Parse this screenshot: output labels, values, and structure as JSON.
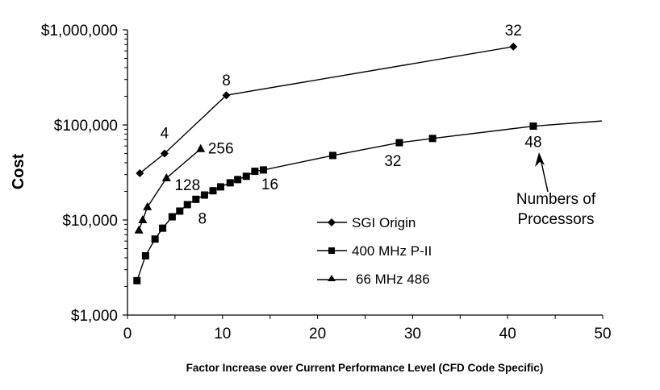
{
  "chart_data": {
    "type": "line",
    "title": "",
    "xlabel": "Factor Increase over Current Performance Level (CFD Code Specific)",
    "ylabel": "Cost",
    "xlim": [
      0,
      50
    ],
    "ylim": [
      1000,
      1000000
    ],
    "yscale": "log",
    "xticks": [
      0,
      10,
      20,
      30,
      40,
      50
    ],
    "xtick_labels": [
      "0",
      "10",
      "20",
      "30",
      "40",
      "50"
    ],
    "yticks": [
      1000,
      10000,
      100000,
      1000000
    ],
    "ytick_labels": [
      "$1,000",
      "$10,000",
      "$100,000",
      "$1,000,000"
    ],
    "grid": false,
    "legend_position": "center",
    "series": [
      {
        "name": "SGI Origin",
        "marker": "diamond",
        "x": [
          1.3,
          3.9,
          10.4,
          40.6
        ],
        "y": [
          31000,
          50000,
          205000,
          665000
        ],
        "point_labels": [
          {
            "index": 1,
            "text": "4"
          },
          {
            "index": 2,
            "text": "8"
          },
          {
            "index": 3,
            "text": "32"
          }
        ]
      },
      {
        "name": "400 MHz P-II",
        "marker": "square",
        "x": [
          1.0,
          1.9,
          2.9,
          3.7,
          4.7,
          5.5,
          6.3,
          7.2,
          8.1,
          9.0,
          9.8,
          10.8,
          11.6,
          12.5,
          13.4,
          14.3,
          21.6,
          28.6,
          32.1,
          42.7
        ],
        "y": [
          2300,
          4200,
          6300,
          8200,
          10800,
          12400,
          14500,
          16500,
          18300,
          20300,
          22300,
          24600,
          26600,
          28800,
          32500,
          33600,
          47700,
          65000,
          72000,
          97000
        ],
        "line_extension": {
          "x": 49.9,
          "y": 110000
        },
        "point_labels": [
          {
            "index": 7,
            "text": "8"
          },
          {
            "index": 15,
            "text": "16"
          },
          {
            "index": 17,
            "text": "32"
          },
          {
            "index": 19,
            "text": "48"
          }
        ]
      },
      {
        "name": "66 MHz 486",
        "marker": "triangle",
        "x": [
          1.2,
          1.6,
          2.1,
          4.1,
          7.7
        ],
        "y": [
          7800,
          10000,
          13700,
          27600,
          56000
        ],
        "point_labels": [
          {
            "index": 3,
            "text": "128"
          },
          {
            "index": 4,
            "text": "256"
          }
        ]
      }
    ],
    "annotations": [
      {
        "text_lines": [
          "Numbers of",
          "Processors"
        ],
        "arrow_to_series": "400 MHz P-II",
        "arrow_to_index": 19
      }
    ]
  }
}
